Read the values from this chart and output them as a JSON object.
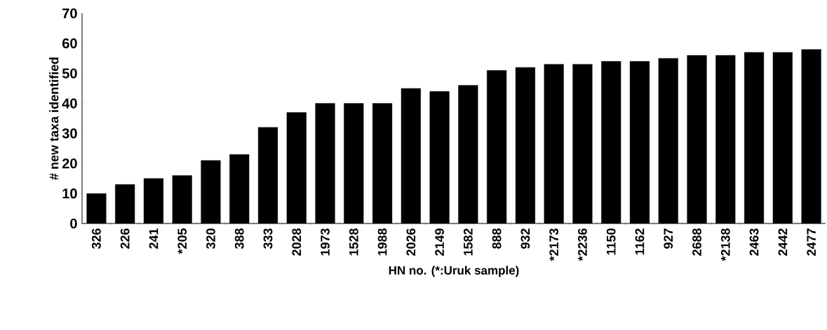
{
  "chart_data": {
    "type": "bar",
    "xlabel": "HN no. (*:Uruk sample)",
    "ylabel": "# new taxa identified",
    "categories": [
      "326",
      "226",
      "241",
      "*205",
      "320",
      "388",
      "333",
      "2028",
      "1973",
      "1528",
      "1988",
      "2026",
      "2149",
      "1582",
      "888",
      "932",
      "*2173",
      "*2236",
      "1150",
      "1162",
      "927",
      "2688",
      "*2138",
      "2463",
      "2442",
      "2477"
    ],
    "values": [
      10,
      13,
      15,
      16,
      21,
      23,
      32,
      37,
      40,
      40,
      40,
      45,
      44,
      46,
      51,
      52,
      53,
      53,
      54,
      54,
      55,
      56,
      56,
      57,
      57,
      58
    ],
    "color": "#000000",
    "ylim": [
      0,
      70
    ],
    "yticks": [
      0,
      10,
      20,
      30,
      40,
      50,
      60,
      70
    ],
    "grid": false
  }
}
